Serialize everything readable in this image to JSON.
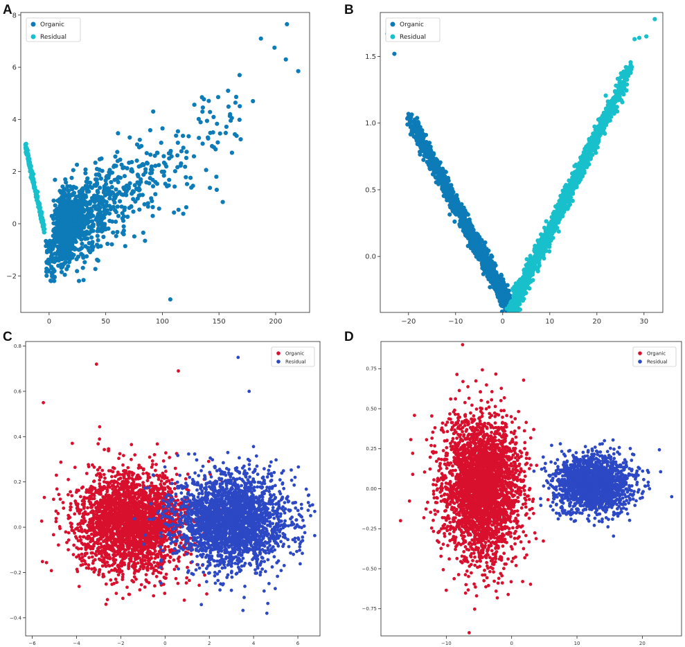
{
  "figure": {
    "panel_count": 4
  },
  "chart_data": [
    {
      "type": "scatter",
      "panel_label": "A",
      "title": "",
      "xlabel": "",
      "ylabel": "",
      "xlim": [
        -25,
        230
      ],
      "ylim": [
        -3.4,
        8.1
      ],
      "xticks": [
        0,
        50,
        100,
        150,
        200
      ],
      "yticks": [
        -2,
        0,
        2,
        4,
        6,
        8
      ],
      "xtick_labels": [
        "0",
        "50",
        "100",
        "150",
        "200"
      ],
      "ytick_labels": [
        "−2",
        "0",
        "2",
        "4",
        "6",
        "8"
      ],
      "legend_position": "top-left",
      "series": [
        {
          "name": "Organic",
          "color": "#0c7bb7",
          "count": 1500
        },
        {
          "name": "Residual",
          "color": "#18c0cc",
          "count": 220
        }
      ],
      "explicit_points": {
        "Organic": [
          [
            187,
            7.1
          ],
          [
            199,
            6.75
          ],
          [
            209,
            6.3
          ],
          [
            210,
            7.65
          ],
          [
            220,
            5.85
          ],
          [
            107,
            -2.9
          ],
          [
            180,
            4.7
          ],
          [
            158,
            5.1
          ],
          [
            135,
            4.85
          ],
          [
            148,
            1.3
          ]
        ]
      },
      "legend_labels": [
        "Organic",
        "Residual"
      ]
    },
    {
      "type": "scatter",
      "panel_label": "B",
      "title": "",
      "xlabel": "",
      "ylabel": "",
      "xlim": [
        -26,
        34
      ],
      "ylim": [
        -0.42,
        1.83
      ],
      "xticks": [
        -20,
        -10,
        0,
        10,
        20,
        30
      ],
      "yticks": [
        0.0,
        0.5,
        1.0,
        1.5
      ],
      "xtick_labels": [
        "−20",
        "−10",
        "0",
        "10",
        "20",
        "30"
      ],
      "ytick_labels": [
        "0.0",
        "0.5",
        "1.0",
        "1.5"
      ],
      "legend_position": "top-left",
      "series": [
        {
          "name": "Organic",
          "color": "#0c7bb7",
          "count": 1500
        },
        {
          "name": "Residual",
          "color": "#18c0cc",
          "count": 1500
        }
      ],
      "explicit_points": {
        "Residual": [
          [
            32.3,
            1.78
          ],
          [
            30.5,
            1.65
          ],
          [
            29,
            1.64
          ],
          [
            28,
            1.63
          ],
          [
            27,
            1.42
          ]
        ],
        "Organic": [
          [
            -24.5,
            1.67
          ],
          [
            -23,
            1.52
          ]
        ]
      },
      "legend_labels": [
        "Organic",
        "Residual"
      ]
    },
    {
      "type": "scatter",
      "panel_label": "C",
      "title": "",
      "xlabel": "",
      "ylabel": "",
      "xlim": [
        -6.3,
        7.0
      ],
      "ylim": [
        -0.48,
        0.82
      ],
      "xticks": [
        -6,
        -4,
        -2,
        0,
        2,
        4,
        6
      ],
      "yticks": [
        -0.4,
        -0.2,
        0.0,
        0.2,
        0.4,
        0.6,
        0.8
      ],
      "xtick_labels": [
        "−6",
        "−4",
        "−2",
        "0",
        "2",
        "4",
        "6"
      ],
      "ytick_labels": [
        "−0.4",
        "−0.2",
        "0.0",
        "0.2",
        "0.4",
        "0.6",
        "0.8"
      ],
      "legend_position": "top-right",
      "series": [
        {
          "name": "Organic",
          "color": "#d8102e",
          "count": 2600
        },
        {
          "name": "Residual",
          "color": "#2c48c4",
          "count": 2600
        }
      ],
      "explicit_points": {
        "Organic": [
          [
            -3.1,
            0.72
          ],
          [
            0.6,
            0.69
          ],
          [
            -5.5,
            0.55
          ]
        ],
        "Residual": [
          [
            3.3,
            0.75
          ],
          [
            3.8,
            0.6
          ],
          [
            4.6,
            -0.38
          ]
        ]
      },
      "legend_labels": [
        "Organic",
        "Residual"
      ]
    },
    {
      "type": "scatter",
      "panel_label": "D",
      "title": "",
      "xlabel": "",
      "ylabel": "",
      "xlim": [
        -20,
        26
      ],
      "ylim": [
        -0.92,
        0.92
      ],
      "xticks": [
        -10,
        0,
        10,
        20
      ],
      "yticks": [
        -0.75,
        -0.5,
        -0.25,
        0.0,
        0.25,
        0.5,
        0.75
      ],
      "xtick_labels": [
        "−10",
        "0",
        "10",
        "20"
      ],
      "ytick_labels": [
        "−0.75",
        "−0.50",
        "−0.25",
        "0.00",
        "0.25",
        "0.50",
        "0.75"
      ],
      "legend_position": "top-right",
      "series": [
        {
          "name": "Organic",
          "color": "#d8102e",
          "count": 3000
        },
        {
          "name": "Residual",
          "color": "#2c48c4",
          "count": 1600
        }
      ],
      "explicit_points": {
        "Organic": [
          [
            -7.5,
            0.9
          ],
          [
            -6.5,
            -0.9
          ],
          [
            -17,
            -0.2
          ]
        ],
        "Residual": [
          [
            24.5,
            -0.05
          ]
        ]
      },
      "legend_labels": [
        "Organic",
        "Residual"
      ]
    }
  ]
}
